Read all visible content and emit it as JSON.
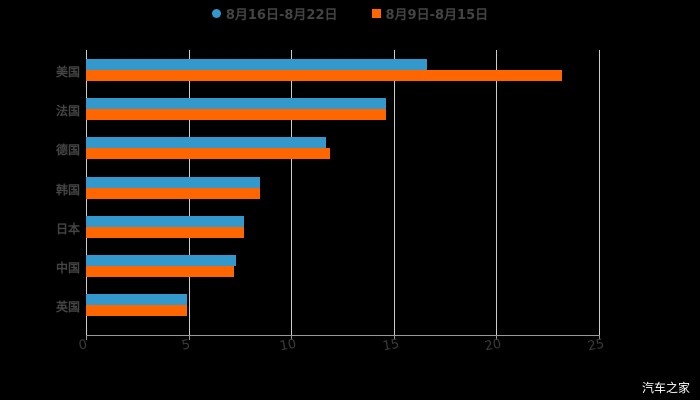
{
  "chart_data": {
    "type": "bar",
    "orientation": "horizontal",
    "title": "",
    "xlabel": "",
    "ylabel": "",
    "categories": [
      "美国",
      "法国",
      "德国",
      "韩国",
      "日本",
      "中国",
      "英国"
    ],
    "series": [
      {
        "name": "8月16日-8月22日",
        "color": "#3399cc",
        "values": [
          16.6,
          14.6,
          11.7,
          8.5,
          7.7,
          7.3,
          4.9
        ]
      },
      {
        "name": "8月9日-8月15日",
        "color": "#ff6600",
        "values": [
          23.2,
          14.6,
          11.9,
          8.5,
          7.7,
          7.2,
          4.9
        ]
      }
    ],
    "xlim": [
      0,
      25
    ],
    "x_ticks": [
      "0",
      "5",
      "10",
      "15",
      "20",
      "25"
    ],
    "grid": "vertical",
    "legend_position": "top"
  },
  "legend": {
    "series1": "8月16日-8月22日",
    "series2": "8月9日-8月15日"
  },
  "watermark": "汽车之家"
}
